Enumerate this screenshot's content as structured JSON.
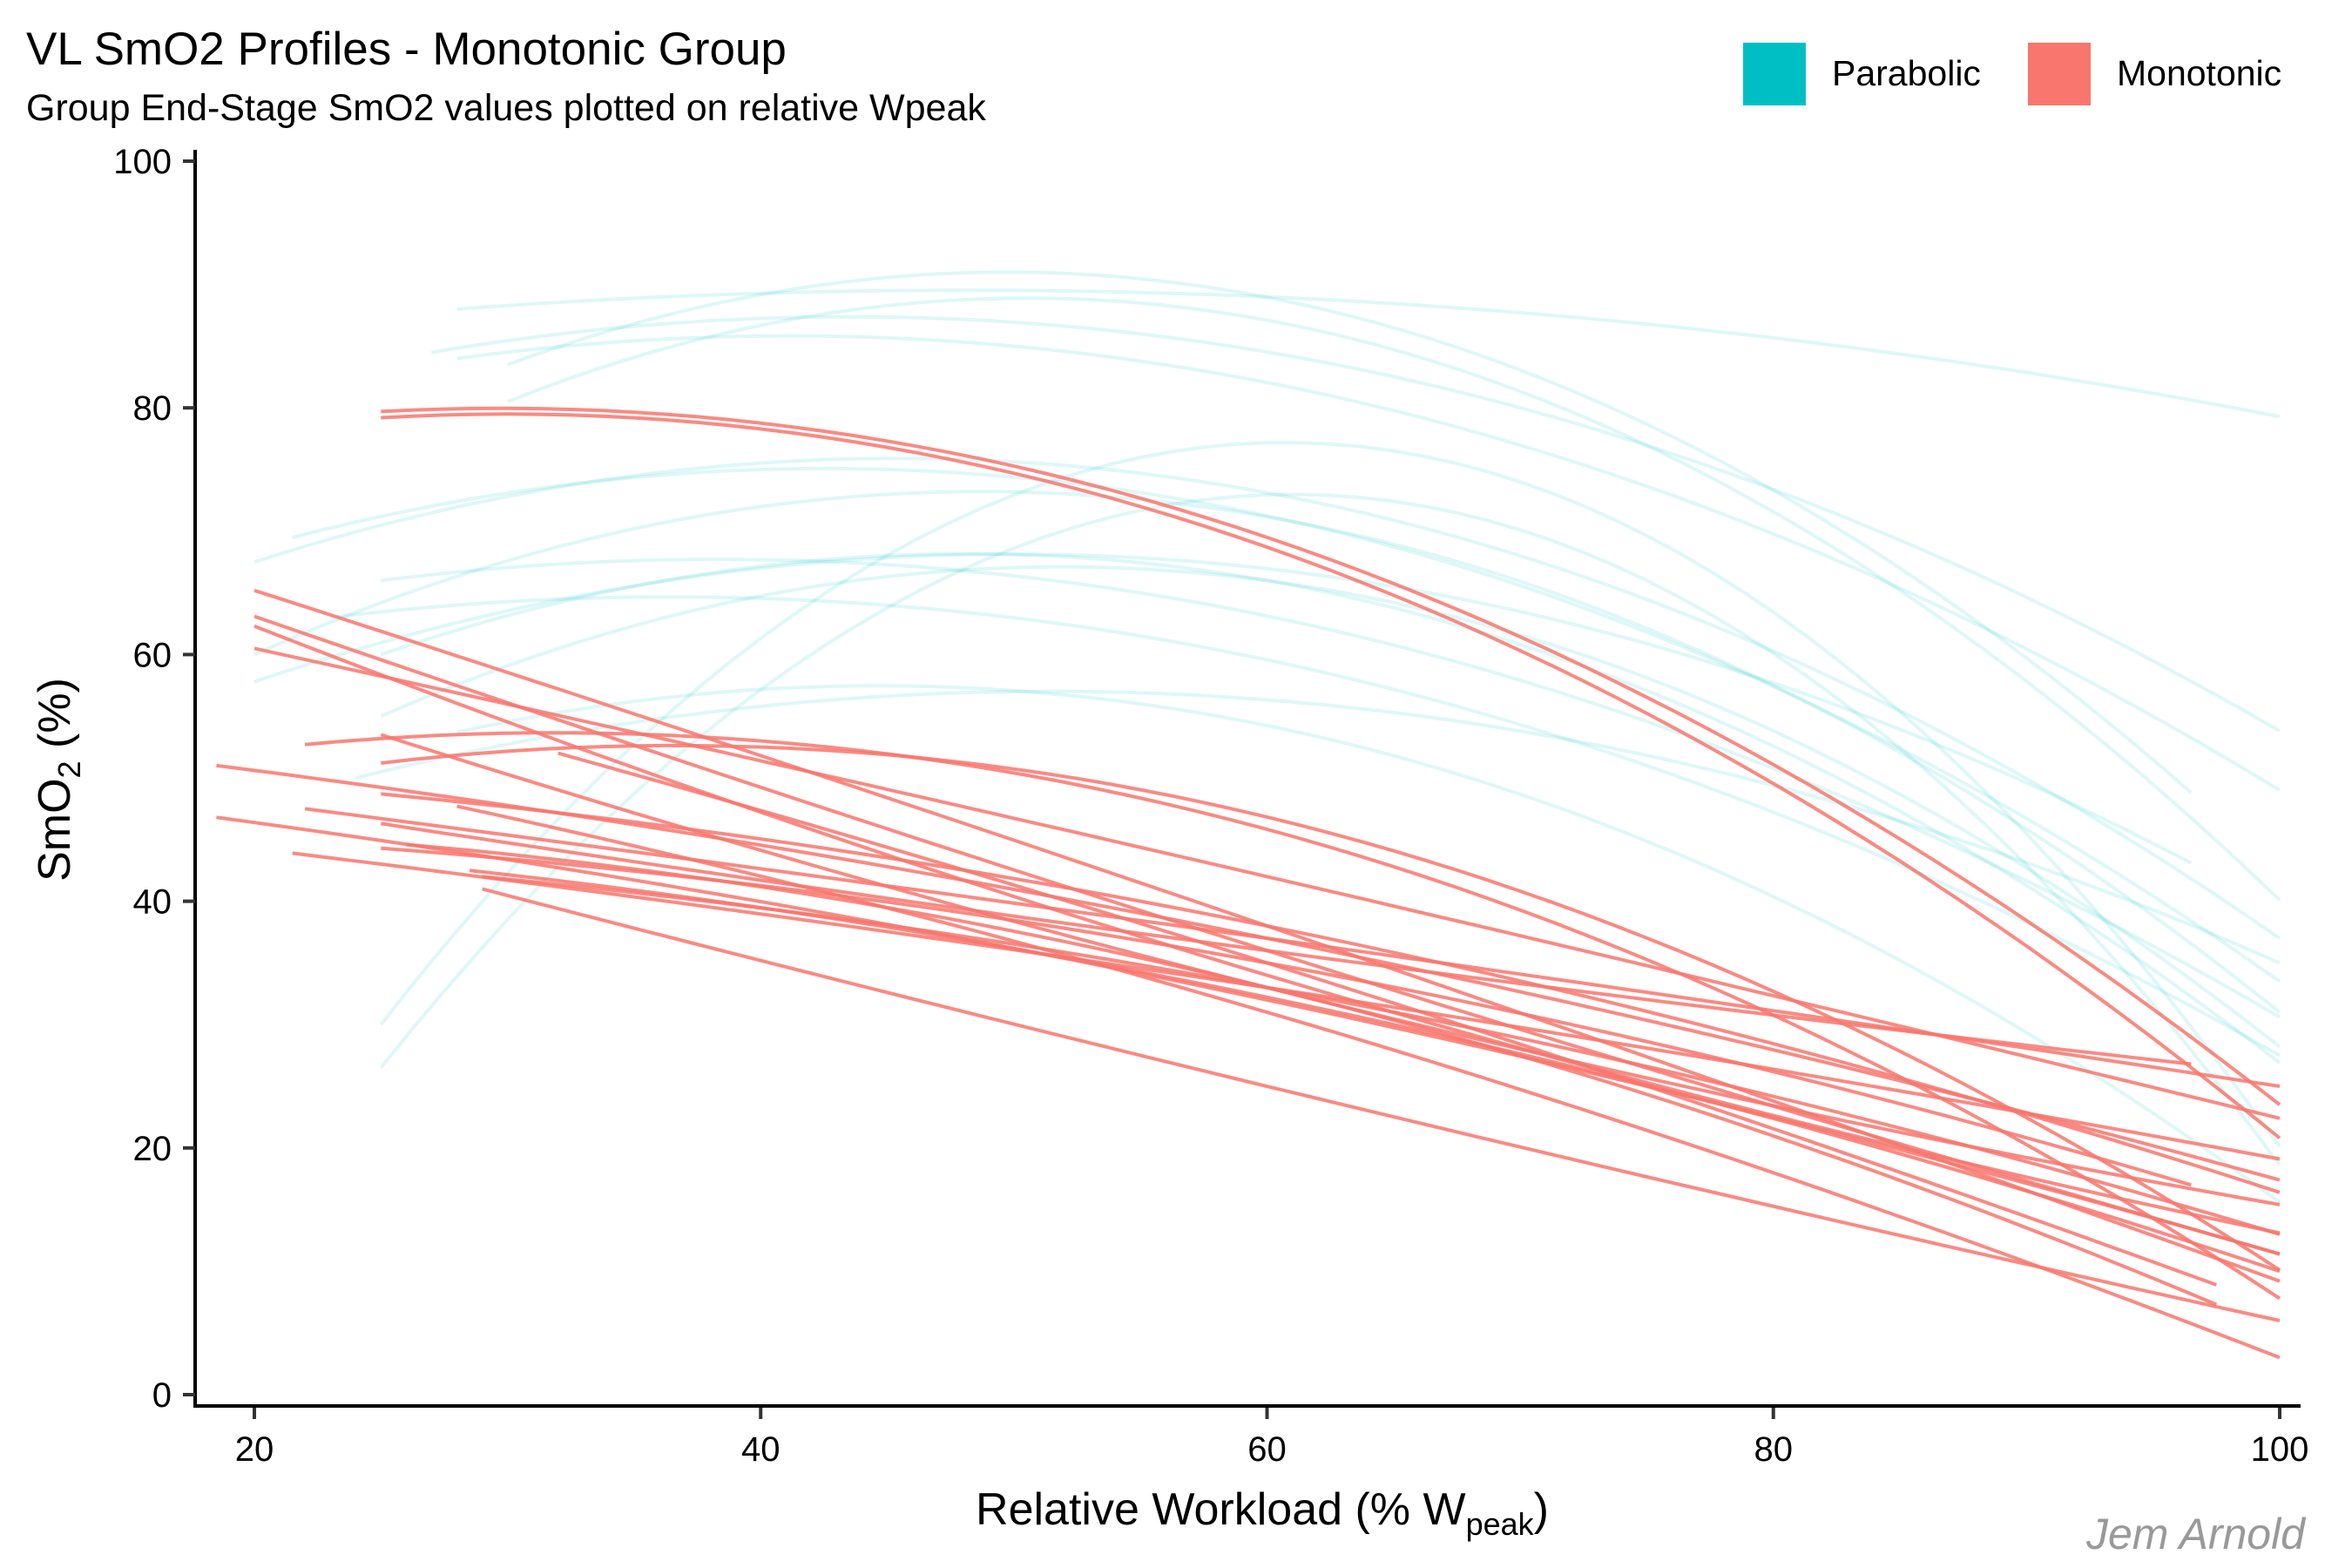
{
  "chart_data": {
    "type": "line",
    "title": "VL SmO2 Profiles - Monotonic Group",
    "subtitle": "Group End-Stage SmO2 values plotted on relative Wpeak",
    "xlabel": {
      "main": "Relative Workload (% W",
      "sub": "peak",
      "end": ")"
    },
    "ylabel": {
      "main": "SmO",
      "sub": "2",
      "end": " (%)"
    },
    "xlim": [
      17.7,
      100.8
    ],
    "ylim": [
      -0.9,
      100.9
    ],
    "x_ticks": [
      20,
      40,
      60,
      80,
      100
    ],
    "y_ticks": [
      0,
      20,
      40,
      60,
      80,
      100
    ],
    "x_tick_labels": [
      "20",
      "40",
      "60",
      "80",
      "100"
    ],
    "y_tick_labels": [
      "0",
      "20",
      "40",
      "60",
      "80",
      "100"
    ],
    "grid": false,
    "legend": {
      "position": "top-right",
      "entries": [
        {
          "label": "Parabolic",
          "color": "#00BFC4"
        },
        {
          "label": "Monotonic",
          "color": "#F8766D"
        }
      ]
    },
    "caption": "Jem Arnold",
    "series_note": "Each series is a quadratic profile given by three points [x, y] (start, middle, end) in data units",
    "groups": [
      {
        "name": "Parabolic",
        "color": "#00BFC4",
        "opacity": 0.13,
        "series": [
          [
            [
              28,
              88.0
            ],
            [
              60,
              89.0
            ],
            [
              100,
              79.3
            ]
          ],
          [
            [
              27,
              84.5
            ],
            [
              55,
              86.0
            ],
            [
              100,
              53.8
            ]
          ],
          [
            [
              28,
              84.0
            ],
            [
              50,
              85.0
            ],
            [
              100,
              49.0
            ]
          ],
          [
            [
              30,
              83.5
            ],
            [
              65,
              86.5
            ],
            [
              96.5,
              48.8
            ]
          ],
          [
            [
              30,
              80.5
            ],
            [
              55,
              88.5
            ],
            [
              100,
              40.1
            ]
          ],
          [
            [
              20,
              67.5
            ],
            [
              35,
              74.5
            ],
            [
              100,
              37.0
            ]
          ],
          [
            [
              21.5,
              69.5
            ],
            [
              40,
              75.0
            ],
            [
              100,
              33.5
            ]
          ],
          [
            [
              20,
              60.0
            ],
            [
              40,
              72.0
            ],
            [
              100,
              31.0
            ]
          ],
          [
            [
              20,
              57.8
            ],
            [
              40,
              67.0
            ],
            [
              96.5,
              43.1
            ]
          ],
          [
            [
              25,
              66.0
            ],
            [
              55,
              65.0
            ],
            [
              100,
              30.6
            ]
          ],
          [
            [
              25,
              55.0
            ],
            [
              60,
              66.0
            ],
            [
              100,
              28.2
            ]
          ],
          [
            [
              23,
              63.0
            ],
            [
              45,
              64.0
            ],
            [
              100,
              27.5
            ]
          ],
          [
            [
              25,
              60.0
            ],
            [
              60,
              66.0
            ],
            [
              100,
              26.9
            ]
          ],
          [
            [
              25,
              30.0
            ],
            [
              70,
              74.0
            ],
            [
              100,
              20.1
            ]
          ],
          [
            [
              25,
              26.5
            ],
            [
              75,
              66.0
            ],
            [
              100,
              18.6
            ]
          ],
          [
            [
              28,
              53.7
            ],
            [
              55,
              56.0
            ],
            [
              100,
              15.6
            ]
          ],
          [
            [
              24,
              50.0
            ],
            [
              50,
              57.0
            ],
            [
              100,
              35.0
            ]
          ]
        ]
      },
      {
        "name": "Monotonic",
        "color": "#F8766D",
        "opacity": 0.85,
        "series": [
          [
            [
              25,
              79.7
            ],
            [
              60,
              69.5
            ],
            [
              100,
              23.5
            ]
          ],
          [
            [
              25,
              79.2
            ],
            [
              55,
              72.0
            ],
            [
              100,
              20.8
            ]
          ],
          [
            [
              20,
              65.2
            ],
            [
              60,
              38.0
            ],
            [
              100,
              9.2
            ]
          ],
          [
            [
              20,
              63.1
            ],
            [
              60,
              36.0
            ],
            [
              100,
              11.4
            ]
          ],
          [
            [
              20,
              62.3
            ],
            [
              60,
              34.0
            ],
            [
              100,
              13.1
            ]
          ],
          [
            [
              20,
              60.5
            ],
            [
              60,
              42.0
            ],
            [
              100,
              22.4
            ]
          ],
          [
            [
              18.5,
              51.0
            ],
            [
              60,
              37.0
            ],
            [
              100,
              17.4
            ]
          ],
          [
            [
              18.5,
              46.8
            ],
            [
              60,
              32.0
            ],
            [
              100,
              11.4
            ]
          ],
          [
            [
              22,
              52.7
            ],
            [
              40,
              53.0
            ],
            [
              100,
              7.8
            ]
          ],
          [
            [
              25,
              53.5
            ],
            [
              60,
              33.0
            ],
            [
              100,
              15.4
            ]
          ],
          [
            [
              25,
              51.2
            ],
            [
              40,
              52.5
            ],
            [
              100,
              10.1
            ]
          ],
          [
            [
              32,
              52.0
            ],
            [
              60,
              35.0
            ],
            [
              97.5,
              8.9
            ]
          ],
          [
            [
              25,
              48.7
            ],
            [
              60,
              38.0
            ],
            [
              100,
              16.4
            ]
          ],
          [
            [
              21.5,
              43.9
            ],
            [
              60,
              33.0
            ],
            [
              100,
              19.1
            ]
          ],
          [
            [
              22,
              47.5
            ],
            [
              60,
              37.0
            ],
            [
              100,
              25.0
            ]
          ],
          [
            [
              25,
              46.3
            ],
            [
              60,
              36.0
            ],
            [
              96.5,
              26.8
            ]
          ],
          [
            [
              28,
              47.7
            ],
            [
              60,
              31.0
            ],
            [
              100,
              3.0
            ]
          ],
          [
            [
              25,
              44.3
            ],
            [
              60,
              35.0
            ],
            [
              96.5,
              17.0
            ]
          ],
          [
            [
              26,
              44.6
            ],
            [
              60,
              33.0
            ],
            [
              97.5,
              7.3
            ]
          ],
          [
            [
              29,
              42.0
            ],
            [
              60,
              33.0
            ],
            [
              100,
              13.0
            ]
          ],
          [
            [
              29,
              41.0
            ],
            [
              60,
              25.0
            ],
            [
              100,
              6.0
            ]
          ],
          [
            [
              28.5,
              42.5
            ],
            [
              65,
              30.0
            ],
            [
              100,
              10.0
            ]
          ]
        ]
      }
    ]
  }
}
